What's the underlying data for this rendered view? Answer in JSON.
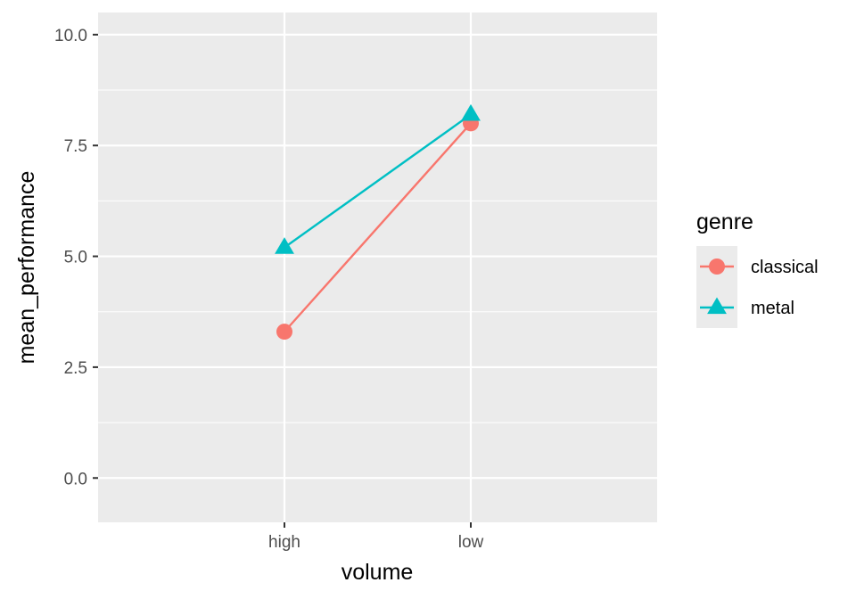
{
  "chart_data": {
    "type": "line",
    "title": "",
    "xlabel": "volume",
    "ylabel": "mean_performance",
    "categories": [
      "high",
      "low"
    ],
    "ylim": [
      -1.0,
      10.5
    ],
    "yticks": [
      0.0,
      2.5,
      5.0,
      7.5,
      10.0
    ],
    "ytick_labels": [
      "0.0",
      "2.5",
      "5.0",
      "7.5",
      "10.0"
    ],
    "grid": true,
    "legend": {
      "title": "genre",
      "placement": "right"
    },
    "series": [
      {
        "name": "classical",
        "values": [
          3.3,
          8.0
        ],
        "color": "#F8766D",
        "marker": "circle"
      },
      {
        "name": "metal",
        "values": [
          5.2,
          8.2
        ],
        "color": "#00BFC4",
        "marker": "triangle"
      }
    ]
  }
}
